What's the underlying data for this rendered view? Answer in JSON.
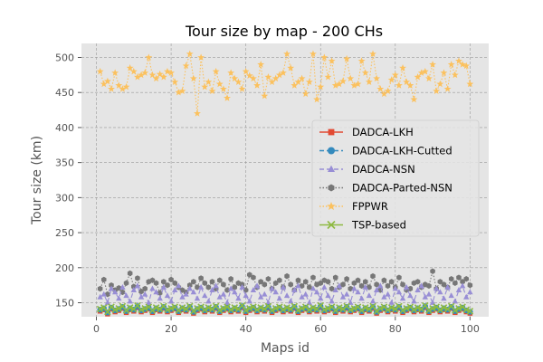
{
  "chart_data": {
    "type": "line",
    "title": "Tour size by map - 200 CHs",
    "xlabel": "Maps id",
    "ylabel": "Tour size (km)",
    "xlim": [
      -4,
      105
    ],
    "ylim": [
      130,
      520
    ],
    "xticks": [
      0,
      20,
      40,
      60,
      80,
      100
    ],
    "yticks": [
      150,
      200,
      250,
      300,
      350,
      400,
      450,
      500
    ],
    "grid": true,
    "legend_position": "right",
    "x": [
      1,
      2,
      3,
      4,
      5,
      6,
      7,
      8,
      9,
      10,
      11,
      12,
      13,
      14,
      15,
      16,
      17,
      18,
      19,
      20,
      21,
      22,
      23,
      24,
      25,
      26,
      27,
      28,
      29,
      30,
      31,
      32,
      33,
      34,
      35,
      36,
      37,
      38,
      39,
      40,
      41,
      42,
      43,
      44,
      45,
      46,
      47,
      48,
      49,
      50,
      51,
      52,
      53,
      54,
      55,
      56,
      57,
      58,
      59,
      60,
      61,
      62,
      63,
      64,
      65,
      66,
      67,
      68,
      69,
      70,
      71,
      72,
      73,
      74,
      75,
      76,
      77,
      78,
      79,
      80,
      81,
      82,
      83,
      84,
      85,
      86,
      87,
      88,
      89,
      90,
      91,
      92,
      93,
      94,
      95,
      96,
      97,
      98,
      99,
      100
    ],
    "series": [
      {
        "name": "DADCA-LKH",
        "color": "#E24A33",
        "marker": "square",
        "linestyle": "solid",
        "values": [
          138,
          140,
          134,
          141,
          137,
          139,
          142,
          136,
          140,
          138,
          143,
          137,
          139,
          141,
          136,
          140,
          138,
          142,
          137,
          139,
          141,
          136,
          140,
          138,
          142,
          135,
          139,
          141,
          137,
          140,
          138,
          142,
          136,
          139,
          141,
          137,
          140,
          138,
          143,
          136,
          139,
          141,
          137,
          140,
          138,
          142,
          136,
          139,
          141,
          137,
          140,
          138,
          142,
          136,
          139,
          141,
          137,
          140,
          138,
          143,
          137,
          139,
          141,
          136,
          140,
          138,
          142,
          137,
          139,
          141,
          136,
          140,
          138,
          142,
          135,
          139,
          141,
          137,
          140,
          138,
          142,
          136,
          139,
          141,
          137,
          140,
          138,
          143,
          136,
          139,
          141,
          137,
          140,
          138,
          142,
          136,
          139,
          141,
          137,
          135
        ]
      },
      {
        "name": "DADCA-LKH-Cutted",
        "color": "#348ABD",
        "marker": "circle",
        "linestyle": "dashed",
        "values": [
          140,
          142,
          136,
          143,
          139,
          141,
          144,
          138,
          142,
          140,
          145,
          139,
          141,
          143,
          138,
          142,
          140,
          144,
          139,
          141,
          143,
          138,
          142,
          140,
          144,
          137,
          141,
          143,
          139,
          142,
          140,
          144,
          138,
          141,
          143,
          139,
          142,
          140,
          145,
          138,
          141,
          143,
          139,
          142,
          140,
          144,
          138,
          141,
          143,
          139,
          142,
          140,
          144,
          138,
          141,
          143,
          139,
          142,
          140,
          145,
          139,
          141,
          143,
          138,
          142,
          140,
          144,
          139,
          141,
          143,
          138,
          142,
          140,
          144,
          137,
          141,
          143,
          139,
          142,
          140,
          144,
          138,
          141,
          143,
          139,
          142,
          140,
          145,
          138,
          141,
          143,
          139,
          142,
          140,
          144,
          138,
          141,
          143,
          139,
          137
        ]
      },
      {
        "name": "DADCA-NSN",
        "color": "#988ED5",
        "marker": "triangle",
        "linestyle": "dashed",
        "values": [
          158,
          162,
          150,
          170,
          165,
          156,
          172,
          160,
          152,
          168,
          174,
          158,
          162,
          150,
          170,
          165,
          156,
          172,
          160,
          152,
          168,
          174,
          158,
          162,
          170,
          165,
          156,
          172,
          160,
          152,
          168,
          174,
          158,
          162,
          150,
          170,
          165,
          156,
          172,
          160,
          152,
          168,
          174,
          158,
          162,
          150,
          170,
          165,
          156,
          172,
          160,
          152,
          168,
          174,
          158,
          162,
          150,
          170,
          165,
          156,
          172,
          160,
          152,
          168,
          174,
          158,
          162,
          150,
          170,
          165,
          156,
          172,
          160,
          152,
          168,
          174,
          158,
          162,
          150,
          170,
          165,
          156,
          172,
          160,
          152,
          168,
          174,
          158,
          162,
          150,
          170,
          165,
          156,
          172,
          160,
          152,
          168,
          174,
          158,
          165
        ]
      },
      {
        "name": "DADCA-Parted-NSN",
        "color": "#777777",
        "marker": "hexagon",
        "linestyle": "dotted",
        "values": [
          170,
          183,
          162,
          175,
          168,
          171,
          165,
          178,
          192,
          173,
          185,
          166,
          170,
          180,
          182,
          178,
          164,
          180,
          175,
          183,
          178,
          172,
          168,
          165,
          175,
          180,
          172,
          185,
          178,
          172,
          180,
          170,
          182,
          176,
          168,
          184,
          172,
          178,
          176,
          168,
          190,
          186,
          172,
          180,
          176,
          184,
          170,
          178,
          182,
          172,
          188,
          176,
          168,
          182,
          174,
          180,
          172,
          186,
          176,
          178,
          182,
          180,
          170,
          186,
          172,
          176,
          184,
          170,
          178,
          182,
          174,
          180,
          172,
          188,
          176,
          168,
          182,
          174,
          180,
          172,
          186,
          176,
          168,
          170,
          178,
          180,
          172,
          176,
          174,
          195,
          170,
          180,
          176,
          172,
          184,
          178,
          186,
          180,
          184,
          175
        ]
      },
      {
        "name": "FPPWR",
        "color": "#FBC15E",
        "marker": "star",
        "linestyle": "dotted",
        "values": [
          480,
          462,
          466,
          455,
          478,
          460,
          455,
          458,
          485,
          480,
          472,
          475,
          478,
          500,
          475,
          470,
          476,
          472,
          480,
          478,
          465,
          450,
          452,
          488,
          505,
          470,
          420,
          500,
          458,
          465,
          452,
          480,
          462,
          455,
          442,
          478,
          470,
          465,
          455,
          480,
          474,
          470,
          460,
          490,
          445,
          472,
          465,
          470,
          475,
          478,
          505,
          485,
          460,
          465,
          470,
          448,
          465,
          505,
          440,
          458,
          500,
          472,
          495,
          460,
          462,
          466,
          498,
          470,
          460,
          462,
          495,
          478,
          465,
          505,
          470,
          455,
          448,
          452,
          468,
          475,
          460,
          485,
          465,
          460,
          440,
          472,
          478,
          480,
          470,
          490,
          452,
          462,
          478,
          455,
          490,
          475,
          495,
          490,
          488,
          462
        ]
      },
      {
        "name": "TSP-based",
        "color": "#8EBA42",
        "marker": "x",
        "linestyle": "solid",
        "values": [
          141,
          143,
          137,
          144,
          140,
          142,
          145,
          139,
          143,
          141,
          146,
          140,
          142,
          144,
          139,
          143,
          141,
          145,
          140,
          142,
          144,
          139,
          143,
          141,
          145,
          138,
          142,
          144,
          140,
          143,
          141,
          145,
          139,
          142,
          144,
          140,
          143,
          141,
          146,
          139,
          142,
          144,
          140,
          143,
          141,
          145,
          139,
          142,
          144,
          140,
          143,
          141,
          145,
          139,
          142,
          144,
          140,
          143,
          141,
          146,
          140,
          142,
          144,
          139,
          143,
          141,
          145,
          140,
          142,
          144,
          139,
          143,
          141,
          145,
          138,
          142,
          144,
          140,
          143,
          141,
          145,
          139,
          142,
          144,
          140,
          143,
          141,
          146,
          139,
          142,
          144,
          140,
          143,
          141,
          145,
          139,
          142,
          144,
          140,
          138
        ]
      }
    ]
  }
}
